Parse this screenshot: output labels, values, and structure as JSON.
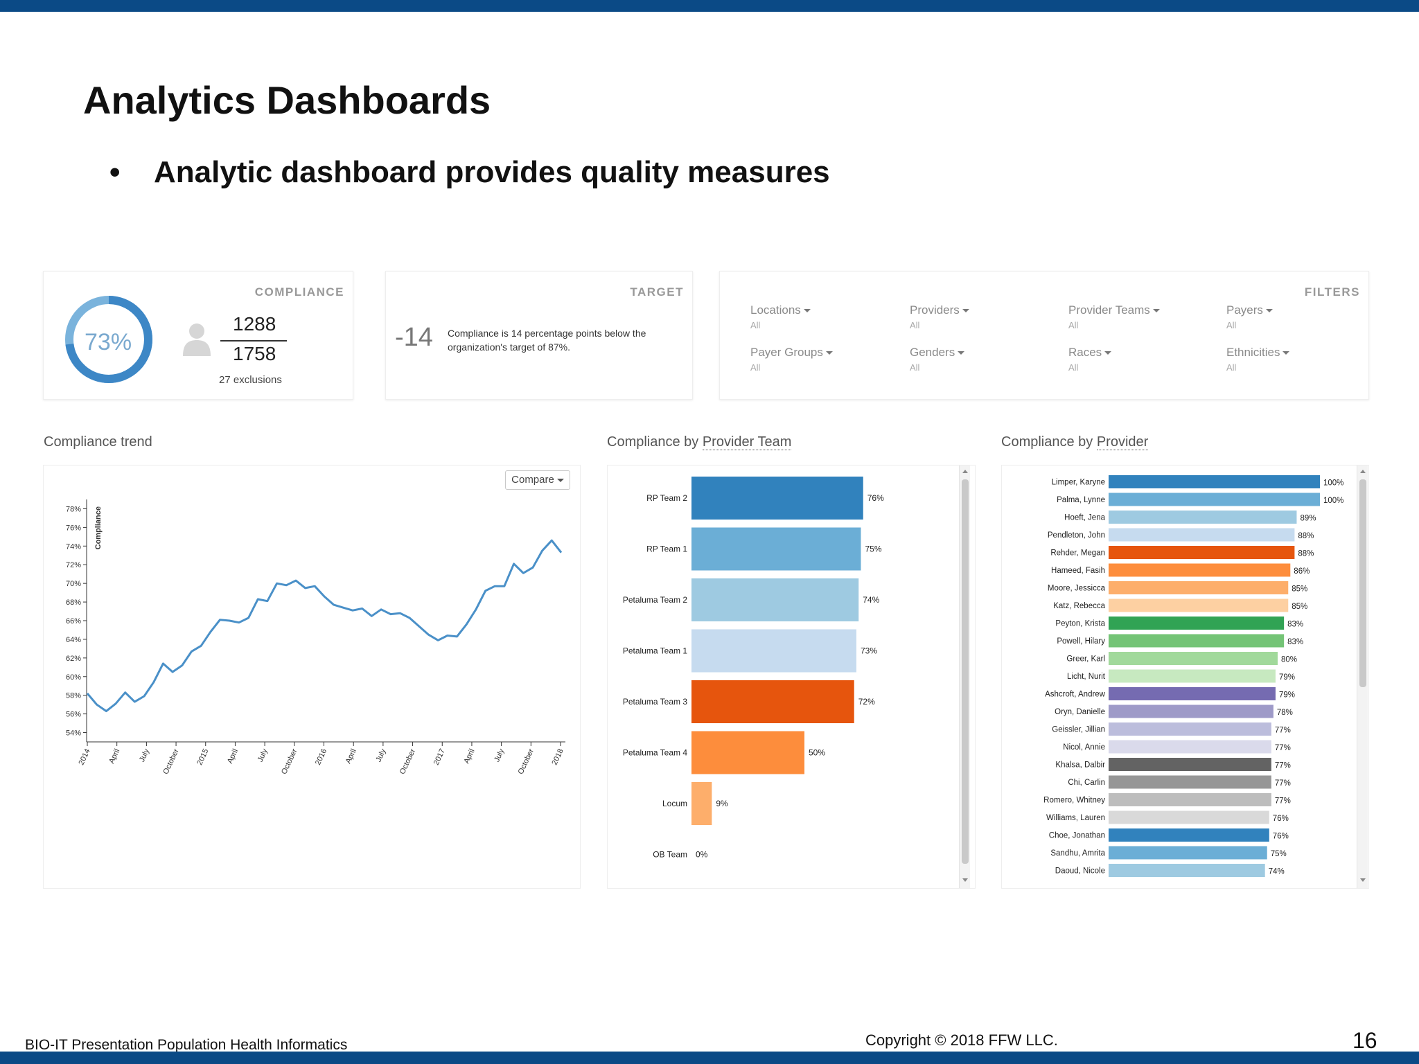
{
  "slide": {
    "title": "Analytics Dashboards",
    "bullet_symbol": "•",
    "bullet": "Analytic dashboard provides quality measures",
    "footer_left": "BIO-IT Presentation Population Health Informatics",
    "footer_copyright": "Copyright © 2018 FFW LLC.",
    "page_number": "16"
  },
  "compliance": {
    "label": "COMPLIANCE",
    "percent": "73%",
    "numerator": "1288",
    "denominator": "1758",
    "exclusions": "27 exclusions",
    "ring_fraction": 0.73
  },
  "target": {
    "label": "TARGET",
    "delta": "-14",
    "description": "Compliance is 14 percentage points below the organization's target of 87%."
  },
  "filters": {
    "label": "FILTERS",
    "items": [
      {
        "name": "Locations",
        "value": "All"
      },
      {
        "name": "Providers",
        "value": "All"
      },
      {
        "name": "Provider Teams",
        "value": "All"
      },
      {
        "name": "Payers",
        "value": "All"
      },
      {
        "name": "Payer Groups",
        "value": "All"
      },
      {
        "name": "Genders",
        "value": "All"
      },
      {
        "name": "Races",
        "value": "All"
      },
      {
        "name": "Ethnicities",
        "value": "All"
      }
    ]
  },
  "sections": {
    "trend_title": "Compliance trend",
    "team_title_prefix": "Compliance by ",
    "team_title_link": "Provider Team",
    "provider_title_prefix": "Compliance by ",
    "provider_title_link": "Provider",
    "compare_label": "Compare"
  },
  "colors": {
    "line": "#4a90c8",
    "ring": "#3d87c6",
    "ring_light": "#7ab3dc",
    "header_bar": "#0b4a86"
  },
  "chart_data": [
    {
      "type": "line",
      "ylabel": "Compliance",
      "ylim": [
        53,
        79
      ],
      "yticks": [
        "78%",
        "76%",
        "74%",
        "72%",
        "70%",
        "68%",
        "66%",
        "64%",
        "62%",
        "60%",
        "58%",
        "56%",
        "54%"
      ],
      "yticks_values": [
        78,
        76,
        74,
        72,
        70,
        68,
        66,
        64,
        62,
        60,
        58,
        56,
        54
      ],
      "xticks": [
        "2014",
        "April",
        "July",
        "October",
        "2015",
        "April",
        "July",
        "October",
        "2016",
        "April",
        "July",
        "October",
        "2017",
        "April",
        "July",
        "October",
        "2018"
      ],
      "series": [
        {
          "values": [
            58.2,
            57.0,
            56.3,
            57.1,
            58.3,
            57.3,
            57.9,
            59.4,
            61.4,
            60.5,
            61.2,
            62.7,
            63.3,
            64.8,
            66.1,
            66.0,
            65.8,
            66.3,
            68.3,
            68.1,
            70.0,
            69.8,
            70.3,
            69.5,
            69.7,
            68.6,
            67.7,
            67.4,
            67.1,
            67.3,
            66.5,
            67.2,
            66.7,
            66.8,
            66.3,
            65.4,
            64.5,
            63.9,
            64.4,
            64.3,
            65.6,
            67.2,
            69.2,
            69.7,
            69.7,
            72.1,
            71.1,
            71.7,
            73.5,
            74.6,
            73.3
          ]
        }
      ]
    },
    {
      "type": "bar",
      "orientation": "horizontal",
      "categories": [
        "RP Team 2",
        "RP Team 1",
        "Petaluma Team 2",
        "Petaluma Team 1",
        "Petaluma Team 3",
        "Petaluma Team 4",
        "Locum",
        "OB Team"
      ],
      "values": [
        76,
        75,
        74,
        73,
        72,
        50,
        9,
        0
      ],
      "labels": [
        "76%",
        "75%",
        "74%",
        "73%",
        "72%",
        "50%",
        "9%",
        "0%"
      ],
      "colors": [
        "#3182bd",
        "#6baed6",
        "#9ecae1",
        "#c6dbef",
        "#e6550d",
        "#fd8d3c",
        "#fdae6b",
        "#fdd0a2"
      ],
      "xlim": [
        0,
        100
      ]
    },
    {
      "type": "bar",
      "orientation": "horizontal",
      "categories": [
        "Limper, Karyne",
        "Palma, Lynne",
        "Hoeft, Jena",
        "Pendleton, John",
        "Rehder, Megan",
        "Hameed, Fasih",
        "Moore, Jessicca",
        "Katz, Rebecca",
        "Peyton, Krista",
        "Powell, Hilary",
        "Greer, Karl",
        "Licht, Nurit",
        "Ashcroft, Andrew",
        "Oryn, Danielle",
        "Geissler, Jillian",
        "Nicol, Annie",
        "Khalsa, Dalbir",
        "Chi, Carlin",
        "Romero, Whitney",
        "Williams, Lauren",
        "Choe, Jonathan",
        "Sandhu, Amrita",
        "Daoud, Nicole"
      ],
      "values": [
        100,
        100,
        89,
        88,
        88,
        86,
        85,
        85,
        83,
        83,
        80,
        79,
        79,
        78,
        77,
        77,
        77,
        77,
        77,
        76,
        76,
        75,
        74
      ],
      "labels": [
        "100%",
        "100%",
        "89%",
        "88%",
        "88%",
        "86%",
        "85%",
        "85%",
        "83%",
        "83%",
        "80%",
        "79%",
        "79%",
        "78%",
        "77%",
        "77%",
        "77%",
        "77%",
        "77%",
        "76%",
        "76%",
        "75%",
        "74%"
      ],
      "colors": [
        "#3182bd",
        "#6baed6",
        "#9ecae1",
        "#c6dbef",
        "#e6550d",
        "#fd8d3c",
        "#fdae6b",
        "#fdd0a2",
        "#31a354",
        "#74c476",
        "#a1d99b",
        "#c7e9c0",
        "#756bb1",
        "#9e9ac8",
        "#bcbddc",
        "#dadaeb",
        "#636363",
        "#969696",
        "#bdbdbd",
        "#d9d9d9",
        "#3182bd",
        "#6baed6",
        "#9ecae1"
      ],
      "xlim": [
        0,
        100
      ]
    }
  ]
}
